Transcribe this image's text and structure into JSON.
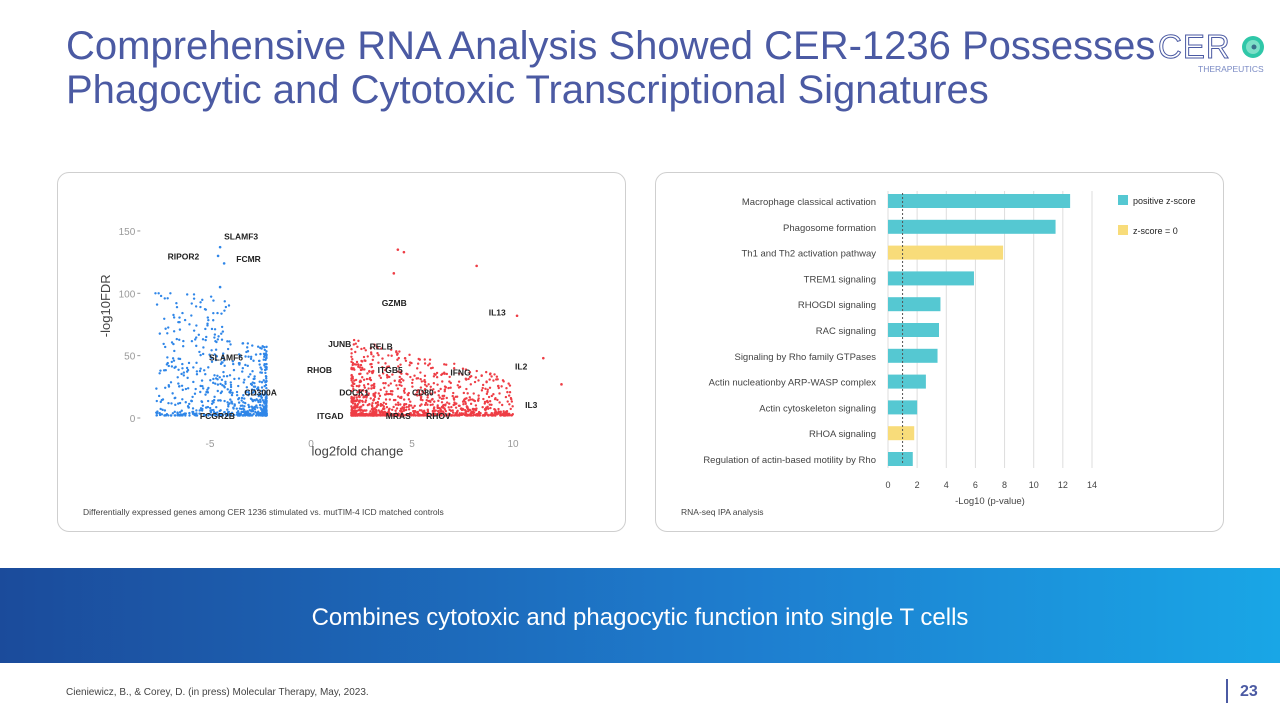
{
  "header": {
    "title_line1": "Comprehensive RNA Analysis Showed CER-1236 Possesses",
    "title_line2": "Phagocytic and Cytotoxic Transcriptional Signatures",
    "logo_text": "CERO",
    "logo_subtext": "THERAPEUTICS"
  },
  "chart_data": [
    {
      "type": "scatter",
      "xlabel": "log2fold change",
      "ylabel": "-log10FDR",
      "xlim": [
        -8,
        12.5
      ],
      "ylim": [
        0,
        150
      ],
      "xticks": [
        "-5",
        "0",
        "5",
        "10"
      ],
      "yticks": [
        "0",
        "50",
        "100",
        "150"
      ],
      "series": [
        {
          "color": "#2f86e8"
        },
        {
          "color": "#ee3d45"
        }
      ],
      "gene_labels": [
        "SLAMF3",
        "RIPOR2",
        "FCMR",
        "SLAMF6",
        "CD300A",
        "FCGR2B",
        "GZMB",
        "IL13",
        "JUNB",
        "RELB",
        "RHOB",
        "ITGB5",
        "IFNG",
        "IL2",
        "DOCK1",
        "CD80",
        "IL3",
        "ITGAD",
        "MRAS",
        "RHOV"
      ],
      "caption": "Differentially expressed genes among CER 1236 stimulated vs. mutTIM-4 ICD matched controls"
    },
    {
      "type": "bar",
      "orientation": "horizontal",
      "xlabel": "-Log10 (p-value)",
      "xlim": [
        0,
        14
      ],
      "xticks": [
        "0",
        "2",
        "4",
        "6",
        "8",
        "10",
        "12",
        "14"
      ],
      "threshold": 1,
      "categories": [
        "Macrophage classical activation",
        "Phagosome formation",
        "Th1 and Th2 activation pathway",
        "TREM1 signaling",
        "RHOGDI signaling",
        "RAC signaling",
        "Signaling by Rho family GTPases",
        "Actin nucleationby ARP-WASP complex",
        "Actin cytoskeleton signaling",
        "RHOA signaling",
        "Regulation of actin-based motility by Rho"
      ],
      "values": [
        12.5,
        11.5,
        7.9,
        5.9,
        3.6,
        3.5,
        3.4,
        2.6,
        2.0,
        1.8,
        1.7
      ],
      "groups": [
        "positive z-score",
        "positive z-score",
        "z-score = 0",
        "positive z-score",
        "positive z-score",
        "positive z-score",
        "positive z-score",
        "positive z-score",
        "positive z-score",
        "z-score = 0",
        "positive z-score"
      ],
      "legend": [
        {
          "label": "positive z-score",
          "color": "#55c8d2"
        },
        {
          "label": "z-score = 0",
          "color": "#f8dc7a"
        }
      ],
      "legend_position": "top-right",
      "caption": "RNA-seq IPA analysis"
    }
  ],
  "banner": {
    "text": "Combines cytotoxic and phagocytic function into single T cells"
  },
  "footer": {
    "reference": "Cieniewicz, B., & Corey, D. (in press) Molecular Therapy, May, 2023.",
    "page": "23"
  }
}
